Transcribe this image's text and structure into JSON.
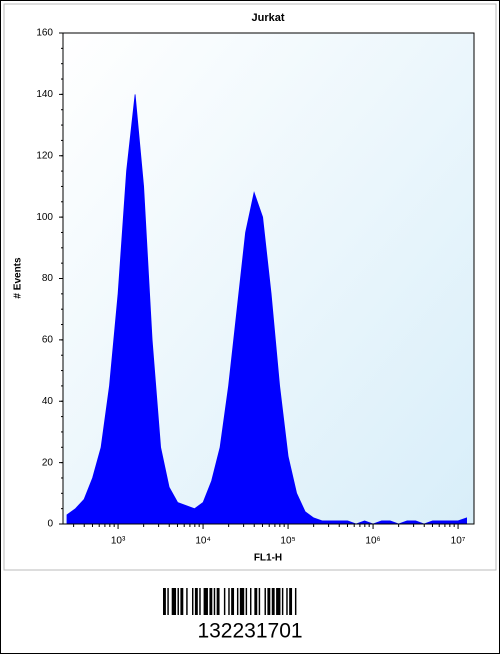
{
  "chart_data": {
    "type": "area",
    "title": "Jurkat",
    "xlabel": "FL1-H",
    "ylabel": "# Events",
    "color": "#0000ff",
    "xscale": "log",
    "x": [
      251,
      316,
      398,
      501,
      631,
      794,
      1000,
      1259,
      1585,
      1995,
      2512,
      3162,
      3981,
      5012,
      6310,
      7943,
      10000,
      12589,
      15849,
      19953,
      25119,
      31623,
      39811,
      50119,
      63096,
      79433,
      100000,
      125893,
      158489,
      199526,
      251189,
      316228,
      398107,
      501187,
      630957,
      794328,
      1000000,
      1258925,
      1584893,
      1995262,
      2511886,
      3162278,
      3981072,
      5011872,
      6309573,
      7943282,
      10000000,
      12589254
    ],
    "values": [
      3,
      5,
      8,
      15,
      25,
      45,
      75,
      115,
      140,
      110,
      60,
      25,
      12,
      7,
      6,
      5,
      7,
      14,
      25,
      45,
      70,
      95,
      108,
      100,
      75,
      45,
      22,
      10,
      4,
      2,
      1,
      1,
      1,
      1,
      0,
      1,
      0,
      1,
      1,
      0,
      1,
      1,
      0,
      1,
      1,
      1,
      1,
      2
    ],
    "xlim": [
      225,
      15400000
    ],
    "xticks": [
      {
        "value": 1000,
        "label": "10³"
      },
      {
        "value": 10000,
        "label": "10⁴"
      },
      {
        "value": 100000,
        "label": "10⁵"
      },
      {
        "value": 1000000,
        "label": "10⁶"
      },
      {
        "value": 10000000,
        "label": "10⁷"
      }
    ],
    "ylim": [
      0,
      160
    ],
    "yticks": [
      0,
      20,
      40,
      60,
      80,
      100,
      120,
      140,
      160
    ]
  },
  "barcode": {
    "number": "132231701"
  }
}
